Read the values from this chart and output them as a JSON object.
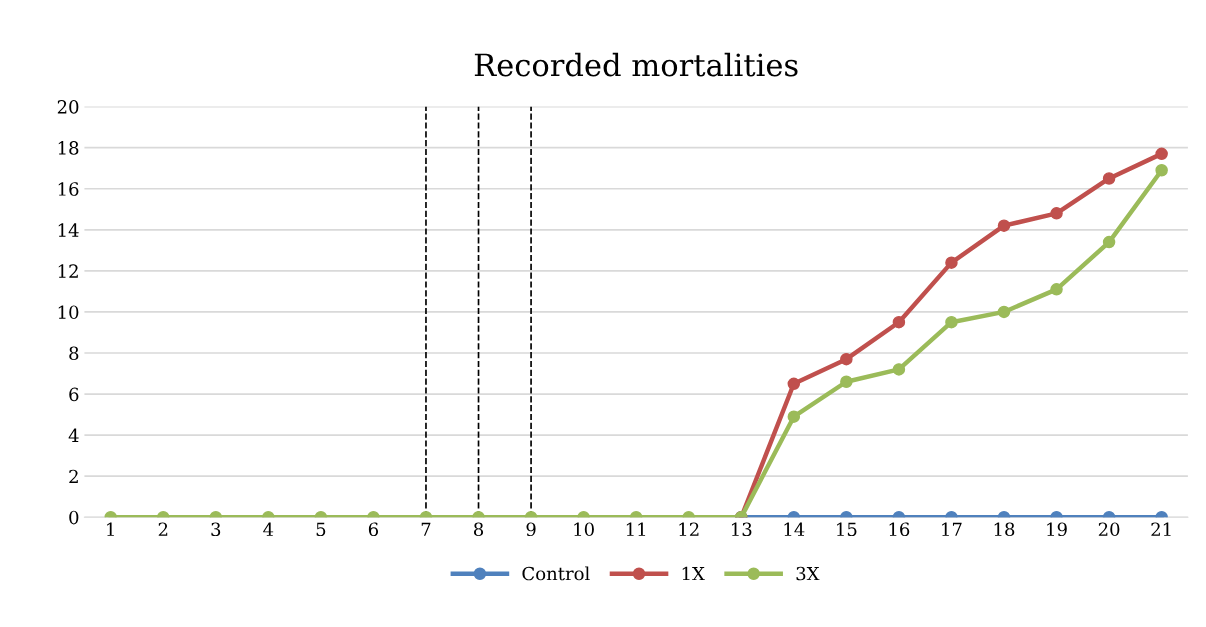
{
  "chart_data": {
    "type": "line",
    "title": "Recorded mortalities",
    "categories": [
      "1",
      "2",
      "3",
      "4",
      "5",
      "6",
      "7",
      "8",
      "9",
      "10",
      "11",
      "12",
      "13",
      "14",
      "15",
      "16",
      "17",
      "18",
      "19",
      "20",
      "21"
    ],
    "series": [
      {
        "name": "Control",
        "color": "#4f81bd",
        "values": [
          null,
          null,
          null,
          null,
          null,
          null,
          null,
          null,
          null,
          null,
          null,
          null,
          0,
          0,
          0,
          0,
          0,
          0,
          0,
          0,
          0
        ]
      },
      {
        "name": "1X",
        "color": "#c0504d",
        "values": [
          null,
          null,
          null,
          null,
          null,
          null,
          null,
          null,
          null,
          null,
          null,
          null,
          0,
          6.5,
          7.7,
          9.5,
          12.4,
          14.2,
          14.8,
          16.5,
          17.7
        ]
      },
      {
        "name": "3X",
        "color": "#9bbb59",
        "values": [
          0,
          0,
          0,
          0,
          0,
          0,
          0,
          0,
          0,
          0,
          0,
          0,
          0,
          4.9,
          6.6,
          7.2,
          9.5,
          10.0,
          11.1,
          13.4,
          16.9
        ]
      }
    ],
    "ylim": [
      0,
      20
    ],
    "yticks": [
      0,
      2,
      4,
      6,
      8,
      10,
      12,
      14,
      16,
      18,
      20
    ],
    "ref_lines": [
      {
        "axis": "x",
        "value": "7",
        "color": "#000000",
        "line_style": "dashed"
      },
      {
        "axis": "x",
        "value": "8",
        "color": "#000000",
        "line_style": "dashed"
      },
      {
        "axis": "x",
        "value": "9",
        "color": "#000000",
        "line_style": "dashed"
      }
    ],
    "grid": "y",
    "legend": "bottom",
    "marker": "circle",
    "line_style": "solid"
  }
}
